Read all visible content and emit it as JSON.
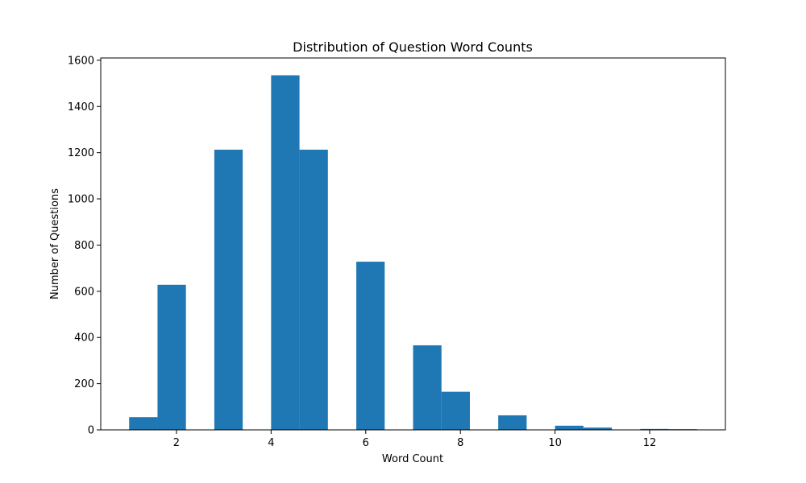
{
  "chart_data": {
    "type": "bar",
    "title": "Distribution of Question Word Counts",
    "xlabel": "Word Count",
    "ylabel": "Number of Questions",
    "xlim": [
      0.4,
      13.6
    ],
    "ylim": [
      0,
      1610
    ],
    "xticks": [
      2,
      4,
      6,
      8,
      10,
      12
    ],
    "yticks": [
      0,
      200,
      400,
      600,
      800,
      1000,
      1200,
      1400,
      1600
    ],
    "bar_color": "#1f77b4",
    "grid": false,
    "bins": [
      {
        "x0": 1.0,
        "x1": 1.6,
        "value": 55
      },
      {
        "x0": 1.6,
        "x1": 2.2,
        "value": 628
      },
      {
        "x0": 2.2,
        "x1": 2.8,
        "value": 0
      },
      {
        "x0": 2.8,
        "x1": 3.4,
        "value": 1213
      },
      {
        "x0": 3.4,
        "x1": 4.0,
        "value": 0
      },
      {
        "x0": 4.0,
        "x1": 4.6,
        "value": 1535
      },
      {
        "x0": 4.6,
        "x1": 5.2,
        "value": 1213
      },
      {
        "x0": 5.2,
        "x1": 5.8,
        "value": 0
      },
      {
        "x0": 5.8,
        "x1": 6.4,
        "value": 728
      },
      {
        "x0": 6.4,
        "x1": 7.0,
        "value": 0
      },
      {
        "x0": 7.0,
        "x1": 7.6,
        "value": 366
      },
      {
        "x0": 7.6,
        "x1": 8.2,
        "value": 165
      },
      {
        "x0": 8.2,
        "x1": 8.8,
        "value": 0
      },
      {
        "x0": 8.8,
        "x1": 9.4,
        "value": 63
      },
      {
        "x0": 9.4,
        "x1": 10.0,
        "value": 0
      },
      {
        "x0": 10.0,
        "x1": 10.6,
        "value": 18
      },
      {
        "x0": 10.6,
        "x1": 11.2,
        "value": 10
      },
      {
        "x0": 11.2,
        "x1": 11.8,
        "value": 0
      },
      {
        "x0": 11.8,
        "x1": 12.4,
        "value": 4
      },
      {
        "x0": 12.4,
        "x1": 13.0,
        "value": 3
      }
    ]
  }
}
